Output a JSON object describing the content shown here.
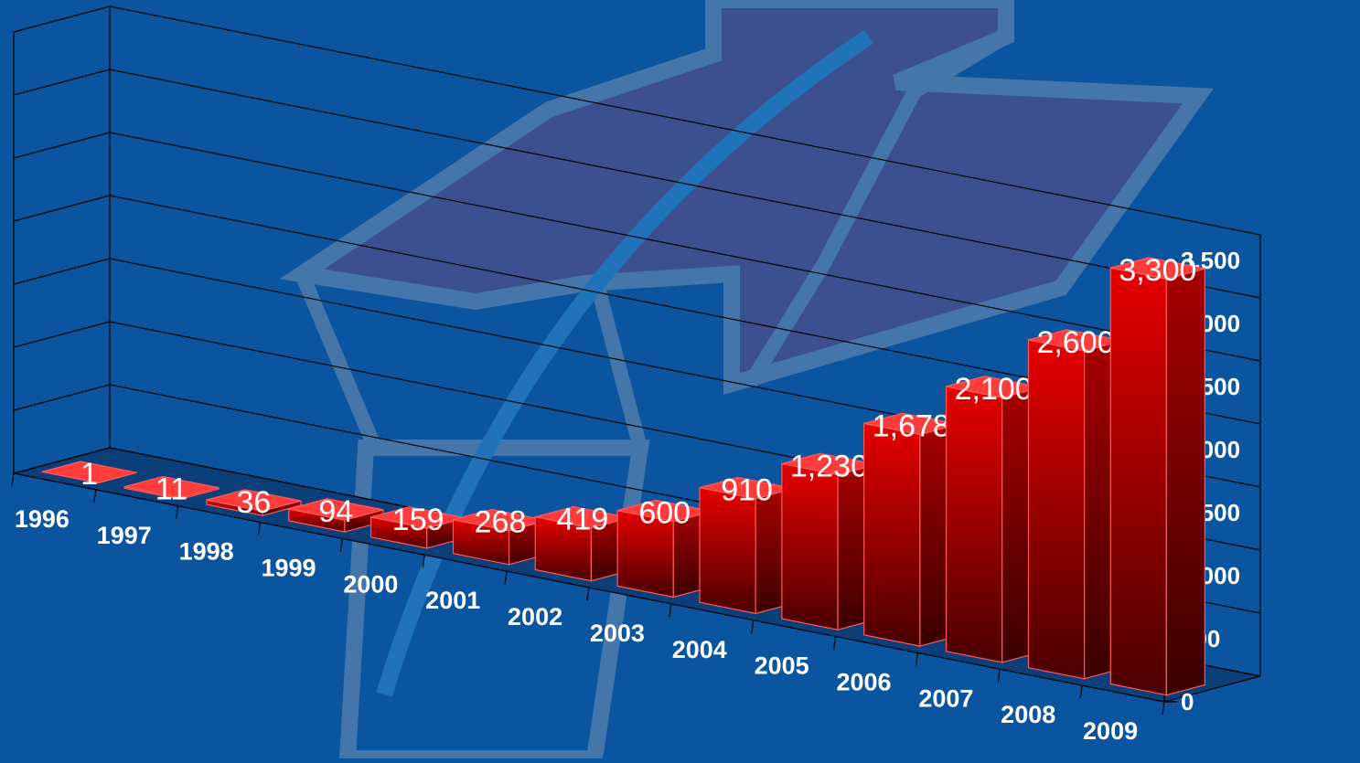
{
  "colors": {
    "background": "#0a54a0",
    "bar_front_top": "#e60000",
    "bar_front_bottom": "#4a0000",
    "bar_side": "#8c0000",
    "bar_top": "#ff3b3b",
    "bar_edge": "#ff5a5a",
    "grid": "#000000",
    "text": "#ffffff"
  },
  "chart_data": {
    "type": "bar",
    "style": "3d-column",
    "categories": [
      "1996",
      "1997",
      "1998",
      "1999",
      "2000",
      "2001",
      "2002",
      "2003",
      "2004",
      "2005",
      "2006",
      "2007",
      "2008",
      "2009"
    ],
    "values": [
      1,
      11,
      36,
      94,
      159,
      268,
      419,
      600,
      910,
      1230,
      1678,
      2100,
      2600,
      3300
    ],
    "value_labels": [
      "1",
      "11",
      "36",
      "94",
      "159",
      "268",
      "419",
      "600",
      "910",
      "1,230",
      "1,678",
      "2,100",
      "2,600",
      "3,300"
    ],
    "ylim": [
      0,
      3500
    ],
    "yticks": [
      0,
      500,
      1000,
      1500,
      2000,
      2500,
      3000,
      3500
    ],
    "ytick_labels": [
      "0",
      "500",
      "1,000",
      "1,500",
      "2,000",
      "2,500",
      "3,000",
      "3,500"
    ],
    "y_axis_side": "right",
    "grid": true,
    "legend": false,
    "title": "",
    "xlabel": "",
    "ylabel": ""
  }
}
